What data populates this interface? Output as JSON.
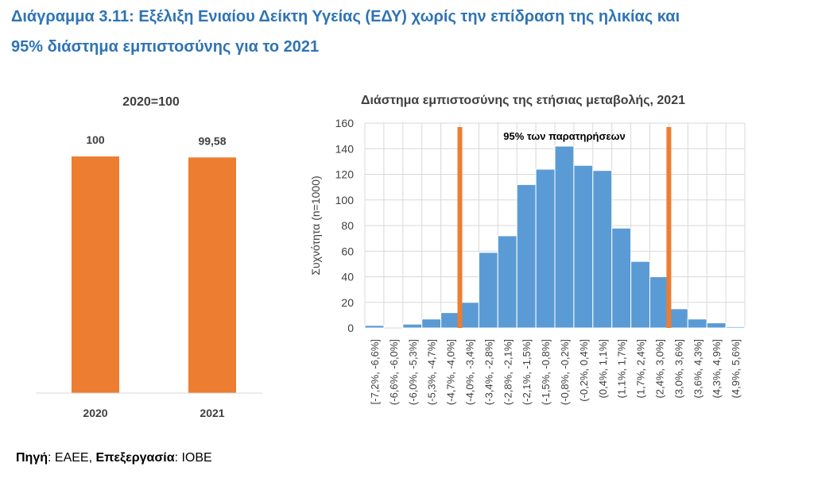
{
  "title_line1": "Διάγραμμα 3.11: Εξέλιξη Ενιαίου Δείκτη Υγείας (ΕΔΥ) χωρίς την επίδραση της ηλικίας και",
  "title_line2": "95% διάστημα εμπιστοσύνης για το 2021",
  "source": {
    "label1": "Πηγή",
    "value1": ": ΕΑΕΕ, ",
    "label2": "Επεξεργασία",
    "value2": ": ΙΟΒΕ"
  },
  "colors": {
    "title": "#2E74B5",
    "bar_orange": "#ED7D31",
    "bar_blue": "#5B9BD5",
    "ci_line": "#ED7D31"
  },
  "chart_data": [
    {
      "type": "bar",
      "title": "2020=100",
      "categories": [
        "2020",
        "2021"
      ],
      "values": [
        100,
        99.58
      ],
      "data_labels": [
        "100",
        "99,58"
      ],
      "grid": false,
      "legend": "none"
    },
    {
      "type": "bar",
      "title": "Διάστημα εμπιστοσύνης της ετήσιας μεταβολής, 2021",
      "ylabel": "Συχνότητα (n=1000)",
      "xlabel": "",
      "ylim": [
        0,
        160
      ],
      "yticks": [
        0,
        20,
        40,
        60,
        80,
        100,
        120,
        140,
        160
      ],
      "grid": true,
      "categories": [
        "[-7,2%, -6,6%]",
        "(-6,6%, -6,0%]",
        "(-6,0%, -5,3%]",
        "(-5,3%, -4,7%]",
        "(-4,7%, -4,0%]",
        "(-4,0%, -3,4%]",
        "(-3,4%, -2,8%]",
        "(-2,8%, -2,1%]",
        "(-2,1%, -1,5%]",
        "(-1,5%, -0,8%]",
        "(-0,8%, -0,2%]",
        "(-0,2%, 0,4%]",
        "(0,4%, 1,1%]",
        "(1,1%, 1,7%]",
        "(1,7%, 2,4%]",
        "(2,4%, 3,0%]",
        "(3,0%, 3,6%]",
        "(3,6%, 4,3%]",
        "(4,3%, 4,9%]",
        "(4,9%, 5,6%]"
      ],
      "values": [
        2,
        0,
        3,
        7,
        12,
        20,
        59,
        72,
        112,
        124,
        142,
        127,
        123,
        78,
        52,
        40,
        15,
        7,
        4,
        1
      ],
      "annotation": "95% των παρατηρήσεων",
      "ci_bounds_after_bin": [
        4,
        15
      ]
    }
  ]
}
